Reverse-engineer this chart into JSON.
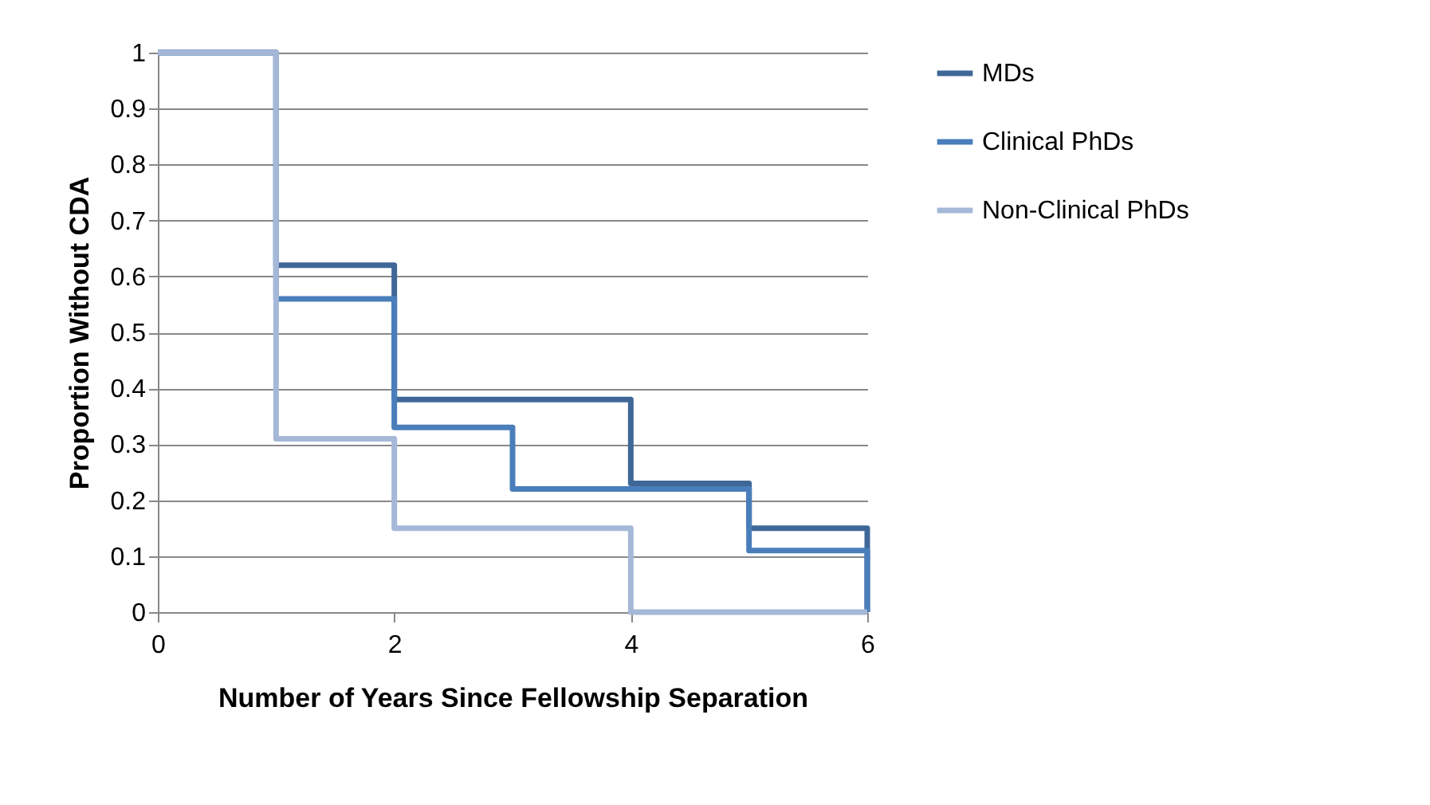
{
  "chart_data": {
    "type": "step",
    "xlabel": "Number of Years Since Fellowship Separation",
    "ylabel": "Proportion Without CDA",
    "x": [
      0,
      1,
      2,
      3,
      4,
      5,
      6
    ],
    "series": [
      {
        "name": "MDs",
        "color": "#3f6898",
        "values": [
          1,
          0.62,
          0.38,
          0.38,
          0.23,
          0.15,
          0
        ]
      },
      {
        "name": "Clinical PhDs",
        "color": "#4a7ebb",
        "values": [
          1,
          0.56,
          0.33,
          0.22,
          0.22,
          0.11,
          0
        ]
      },
      {
        "name": "Non-Clinical PhDs",
        "color": "#a5b8d8",
        "values": [
          1,
          0.31,
          0.15,
          0.15,
          0,
          0,
          0
        ]
      }
    ],
    "xlim": [
      0,
      6
    ],
    "xticks": [
      0,
      2,
      4,
      6
    ],
    "ylim": [
      0,
      1
    ],
    "yticks": [
      0,
      0.1,
      0.2,
      0.3,
      0.4,
      0.5,
      0.6,
      0.7,
      0.8,
      0.9,
      1
    ],
    "grid": "y",
    "legend": "right",
    "marker": "none",
    "line_style": "solid"
  }
}
